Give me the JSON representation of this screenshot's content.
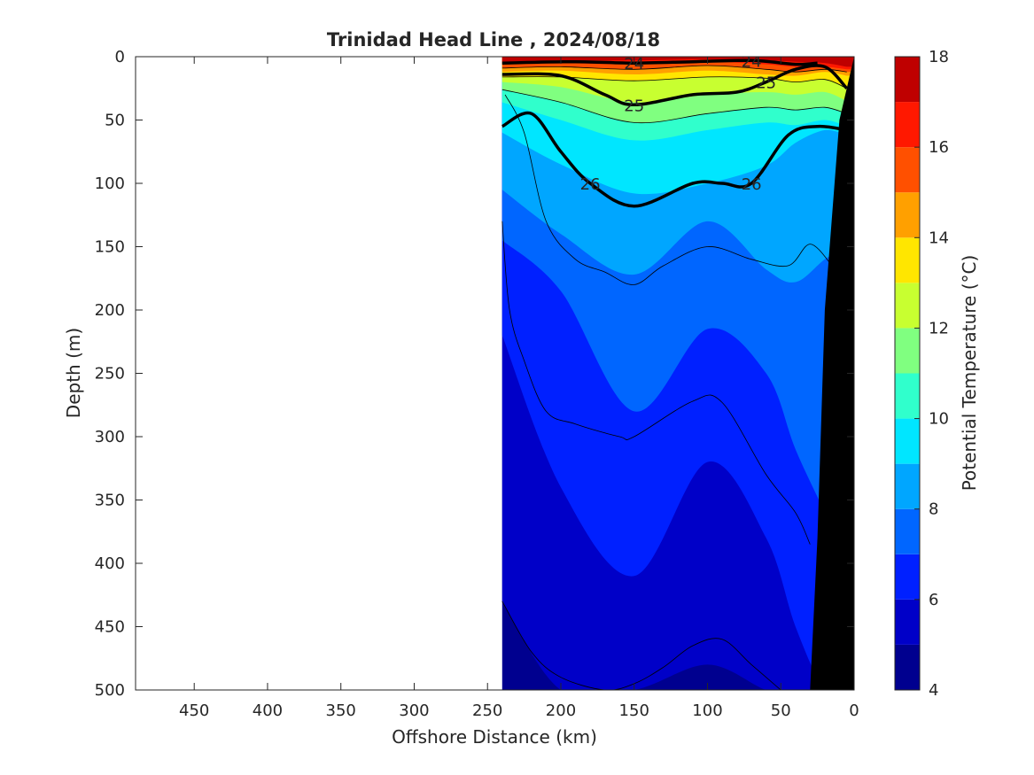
{
  "chart_data": {
    "type": "contour",
    "title": "Trinidad Head Line , 2024/08/18",
    "xlabel": "Offshore Distance (km)",
    "ylabel": "Depth (m)",
    "xlim": [
      490,
      0
    ],
    "x_reversed": true,
    "ylim": [
      0,
      500
    ],
    "y_reversed": true,
    "x_ticks": [
      450,
      400,
      350,
      300,
      250,
      200,
      150,
      100,
      50,
      0
    ],
    "y_ticks": [
      0,
      50,
      100,
      150,
      200,
      250,
      300,
      350,
      400,
      450,
      500
    ],
    "data_extent_km": [
      240,
      0
    ],
    "colorbar": {
      "label": "Potential Temperature (°C)",
      "range": [
        4,
        18
      ],
      "ticks": [
        4,
        6,
        8,
        10,
        12,
        14,
        16,
        18
      ],
      "levels": [
        4,
        5,
        6,
        7,
        8,
        9,
        10,
        11,
        12,
        13,
        14,
        15,
        16,
        17,
        18
      ],
      "colors": [
        "#00008f",
        "#0000c8",
        "#0020ff",
        "#0066ff",
        "#00a6ff",
        "#00e6ff",
        "#30ffcc",
        "#80ff80",
        "#c8ff30",
        "#ffe600",
        "#ffa000",
        "#ff5000",
        "#ff1800",
        "#bf0000"
      ]
    },
    "isotherm_boundaries_depth_m": [
      {
        "temp": 17,
        "x": [
          240,
          200,
          150,
          100,
          60,
          40,
          20,
          5
        ],
        "y": [
          4,
          3,
          3,
          2,
          3,
          4,
          5,
          8
        ]
      },
      {
        "temp": 16,
        "x": [
          240,
          200,
          150,
          100,
          60,
          40,
          20,
          5
        ],
        "y": [
          6,
          5,
          6,
          4,
          6,
          8,
          8,
          10
        ]
      },
      {
        "temp": 15,
        "x": [
          240,
          200,
          150,
          100,
          60,
          40,
          20,
          5
        ],
        "y": [
          9,
          8,
          10,
          7,
          10,
          12,
          10,
          12
        ]
      },
      {
        "temp": 14,
        "x": [
          240,
          200,
          150,
          100,
          60,
          40,
          20,
          5
        ],
        "y": [
          12,
          11,
          14,
          11,
          14,
          15,
          12,
          15
        ]
      },
      {
        "temp": 13,
        "x": [
          240,
          200,
          150,
          100,
          60,
          40,
          20,
          5
        ],
        "y": [
          16,
          16,
          19,
          16,
          17,
          20,
          18,
          25
        ]
      },
      {
        "temp": 12,
        "x": [
          240,
          200,
          150,
          100,
          60,
          40,
          20,
          5
        ],
        "y": [
          20,
          24,
          36,
          30,
          28,
          30,
          28,
          35
        ]
      },
      {
        "temp": 11,
        "x": [
          240,
          200,
          150,
          100,
          60,
          40,
          20,
          5
        ],
        "y": [
          26,
          36,
          52,
          45,
          40,
          42,
          40,
          45
        ]
      },
      {
        "temp": 10,
        "x": [
          240,
          200,
          150,
          100,
          60,
          40,
          20,
          5
        ],
        "y": [
          36,
          50,
          66,
          58,
          52,
          54,
          50,
          55
        ]
      },
      {
        "temp": 9,
        "x": [
          240,
          200,
          150,
          100,
          60,
          40,
          20,
          5
        ],
        "y": [
          60,
          85,
          108,
          100,
          86,
          68,
          58,
          62
        ]
      },
      {
        "temp": 8,
        "x": [
          240,
          200,
          150,
          100,
          60,
          40,
          20,
          5
        ],
        "y": [
          105,
          140,
          172,
          130,
          168,
          178,
          160,
          150
        ]
      },
      {
        "temp": 7,
        "x": [
          240,
          200,
          150,
          100,
          60,
          40,
          20,
          5
        ],
        "y": [
          145,
          185,
          280,
          215,
          250,
          310,
          360,
          400
        ]
      },
      {
        "temp": 6,
        "x": [
          240,
          200,
          150,
          100,
          60,
          40,
          20,
          5
        ],
        "y": [
          220,
          340,
          410,
          320,
          380,
          450,
          500,
          500
        ]
      },
      {
        "temp": 5,
        "x": [
          240,
          200,
          150,
          100,
          60,
          40,
          20,
          5
        ],
        "y": [
          430,
          500,
          500,
          480,
          500,
          500,
          500,
          500
        ]
      }
    ],
    "density_contours": [
      {
        "label": "24",
        "x": [
          240,
          190,
          150,
          110,
          70,
          40,
          25
        ],
        "y": [
          5,
          4,
          5,
          4,
          3,
          6,
          5
        ]
      },
      {
        "label": "25",
        "x": [
          240,
          200,
          170,
          150,
          110,
          80,
          60,
          40,
          20,
          5
        ],
        "y": [
          14,
          15,
          30,
          38,
          30,
          28,
          20,
          10,
          8,
          25
        ]
      },
      {
        "label": "26",
        "x": [
          240,
          220,
          200,
          180,
          150,
          110,
          90,
          70,
          45,
          25,
          5
        ],
        "y": [
          55,
          45,
          75,
          100,
          118,
          100,
          100,
          100,
          62,
          55,
          58
        ]
      }
    ],
    "thin_contours": [
      {
        "x": [
          240,
          200,
          150,
          100,
          60,
          40,
          20,
          5
        ],
        "y": [
          9,
          8,
          10,
          7,
          10,
          12,
          10,
          12
        ]
      },
      {
        "x": [
          240,
          200,
          150,
          100,
          60,
          40,
          20,
          5
        ],
        "y": [
          16,
          16,
          19,
          16,
          17,
          20,
          18,
          25
        ]
      },
      {
        "x": [
          240,
          200,
          150,
          100,
          60,
          40,
          20,
          5
        ],
        "y": [
          26,
          36,
          52,
          45,
          40,
          42,
          40,
          45
        ]
      },
      {
        "x": [
          238,
          225,
          210,
          190,
          170,
          150,
          130,
          100,
          70,
          45,
          30,
          15
        ],
        "y": [
          30,
          60,
          130,
          160,
          170,
          180,
          165,
          150,
          160,
          165,
          148,
          165
        ]
      },
      {
        "x": [
          240,
          235,
          225,
          210,
          190,
          160,
          150,
          110,
          90,
          60,
          40,
          30
        ],
        "y": [
          130,
          200,
          240,
          280,
          290,
          300,
          300,
          272,
          273,
          330,
          360,
          385
        ]
      },
      {
        "x": [
          240,
          220,
          200,
          170,
          150,
          130,
          110,
          90,
          70,
          50
        ],
        "y": [
          430,
          470,
          490,
          500,
          495,
          482,
          465,
          460,
          480,
          500
        ]
      }
    ],
    "bathymetry": {
      "color": "#000000",
      "x": [
        0,
        10,
        20,
        25,
        30
      ],
      "y": [
        0,
        50,
        200,
        380,
        500
      ]
    }
  }
}
